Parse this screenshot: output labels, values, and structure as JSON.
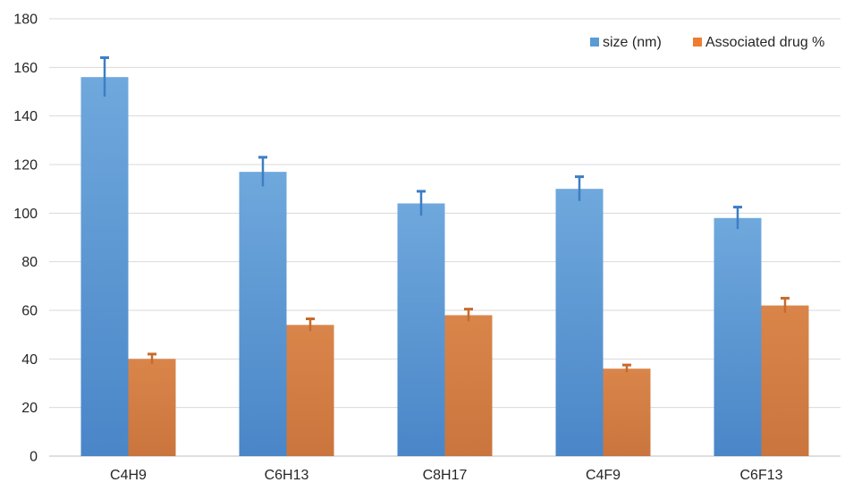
{
  "chart_data": {
    "type": "bar",
    "title": "",
    "xlabel": "",
    "ylabel": "",
    "categories": [
      "C4H9",
      "C6H13",
      "C8H17",
      "C4F9",
      "C6F13"
    ],
    "ylim": [
      0,
      180
    ],
    "yticks": [
      0,
      20,
      40,
      60,
      80,
      100,
      120,
      140,
      160,
      180
    ],
    "grid": true,
    "legend_position": "top-right",
    "series": [
      {
        "name": "size (nm)",
        "color": "#5b9bd5",
        "values": [
          156,
          117,
          104,
          110,
          98
        ],
        "errors": [
          8,
          6,
          5,
          5,
          4.5
        ]
      },
      {
        "name": "Associated drug %",
        "color": "#ed7d31",
        "values": [
          40,
          54,
          58,
          36,
          62
        ],
        "errors": [
          2,
          2.5,
          2.5,
          1.5,
          3
        ]
      }
    ]
  }
}
